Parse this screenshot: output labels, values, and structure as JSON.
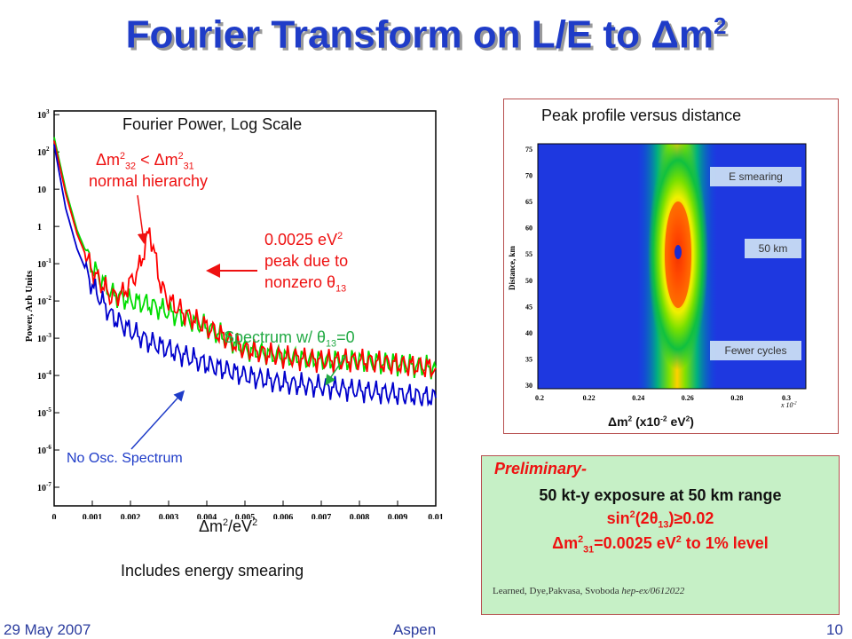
{
  "slide_title": "Fourier Transform on L/E to Δm",
  "slide_title_sup": "2",
  "left_chart": {
    "title": "Fourier Power, Log Scale",
    "ylabel": "Power, Arb Units",
    "xlabel": "Δm",
    "xlabel_sup": "2",
    "xlabel_rest": "/eV",
    "xlabel_sup2": "2",
    "caption": "Includes energy smearing",
    "yticks": [
      {
        "base": "10",
        "exp": "3"
      },
      {
        "base": "10",
        "exp": "2"
      },
      {
        "base": "10",
        "exp": ""
      },
      {
        "base": "1",
        "exp": ""
      },
      {
        "base": "10",
        "exp": "-1"
      },
      {
        "base": "10",
        "exp": "-2"
      },
      {
        "base": "10",
        "exp": "-3"
      },
      {
        "base": "10",
        "exp": "-4"
      },
      {
        "base": "10",
        "exp": "-5"
      },
      {
        "base": "10",
        "exp": "-6"
      },
      {
        "base": "10",
        "exp": "-7"
      }
    ],
    "xticks": [
      "0",
      "0.001",
      "0.002",
      "0.003",
      "0.004",
      "0.005",
      "0.006",
      "0.007",
      "0.008",
      "0.009",
      "0.01"
    ],
    "ann_hierarchy": {
      "l1a": "Δm",
      "l1b": "2",
      "l1c": "32",
      "l1d": " < Δm",
      "l1e": "2",
      "l1f": "31",
      "l2": "normal hierarchy"
    },
    "ann_peak": {
      "l1": "0.0025 eV",
      "l1sup": "2",
      "l2": "peak due to",
      "l3": "nonzero θ",
      "l3sub": "13"
    },
    "ann_theta": {
      "a": "Spectrum w/ θ",
      "sub": "13",
      "b": "=0"
    },
    "ann_noosc": "No Osc. Spectrum"
  },
  "chart_data": [
    {
      "type": "line",
      "title": "Fourier Power, Log Scale",
      "xlabel": "Δm2/eV2",
      "ylabel": "Power, Arb Units",
      "log_y": true,
      "xlim": [
        0,
        0.01
      ],
      "ylim_exp": [
        -7.5,
        3.1
      ],
      "series": [
        {
          "color": "#ff0000",
          "x": [
            0.0,
            0.0003,
            0.0006,
            0.001,
            0.0015,
            0.0018,
            0.0022,
            0.0024,
            0.0025,
            0.0026,
            0.0028,
            0.003,
            0.0035,
            0.004,
            0.005,
            0.006,
            0.007,
            0.008,
            0.009,
            0.01
          ],
          "y_log10": [
            2.3,
            0.9,
            -0.2,
            -1.2,
            -1.9,
            -1.8,
            -1.2,
            -0.5,
            -0.1,
            -0.6,
            -1.6,
            -2.0,
            -2.4,
            -2.7,
            -3.3,
            -3.5,
            -3.6,
            -3.6,
            -3.7,
            -3.8
          ]
        },
        {
          "color": "#00dd00",
          "x": [
            0.0,
            0.0003,
            0.0006,
            0.001,
            0.0015,
            0.002,
            0.0025,
            0.003,
            0.0035,
            0.004,
            0.005,
            0.006,
            0.007,
            0.008,
            0.009,
            0.01
          ],
          "y_log10": [
            2.4,
            1.0,
            -0.1,
            -1.1,
            -1.8,
            -2.0,
            -2.1,
            -2.3,
            -2.5,
            -2.7,
            -3.3,
            -3.5,
            -3.6,
            -3.6,
            -3.7,
            -3.8
          ]
        },
        {
          "color": "#0000cc",
          "x": [
            0.0,
            0.0003,
            0.0006,
            0.001,
            0.0015,
            0.002,
            0.0025,
            0.003,
            0.0035,
            0.004,
            0.005,
            0.006,
            0.007,
            0.008,
            0.009,
            0.01
          ],
          "y_log10": [
            2.2,
            0.5,
            -0.6,
            -1.6,
            -2.4,
            -2.8,
            -3.1,
            -3.3,
            -3.5,
            -3.7,
            -4.0,
            -4.2,
            -4.3,
            -4.4,
            -4.5,
            -4.6
          ]
        }
      ]
    },
    {
      "type": "heatmap",
      "title": "Peak profile versus distance",
      "xlabel": "Δm2 (x10-2 eV2)",
      "ylabel": "Distance, km",
      "xlim": [
        0.2,
        0.32
      ],
      "ylim": [
        30,
        75
      ],
      "peak": {
        "x": 0.252,
        "y": 55
      }
    }
  ],
  "right_panel": {
    "title": "Peak profile versus distance",
    "ylabel": "Distance, km",
    "xlabel_a": "Δm",
    "xlabel_sup1": "2",
    "xlabel_b": " (x10",
    "xlabel_sup2": "-2",
    "xlabel_c": " eV",
    "xlabel_sup3": "2",
    "xlabel_d": ")",
    "x_mult": "x 10",
    "x_mult_sup": "-2",
    "yticks": [
      "75",
      "70",
      "65",
      "60",
      "55",
      "50",
      "45",
      "40",
      "35",
      "30"
    ],
    "xticks": [
      "0.2",
      "0.22",
      "0.24",
      "0.26",
      "0.28",
      "0.3"
    ],
    "label_smearing": "E smearing",
    "label_50km": "50 km",
    "label_fewer": "Fewer cycles"
  },
  "note": {
    "line1": "Preliminary-",
    "line2": "50 kt-y exposure at 50 km range",
    "line3a": "sin",
    "line3sup": "2",
    "line3b": "(2θ",
    "line3sub": "13",
    "line3c": ")≥0.02",
    "line4a": "Δm",
    "line4sup": "2",
    "line4sub": "31",
    "line4b": "=0.0025 eV",
    "line4sup2": "2",
    "line4c": " to 1% level",
    "cite_authors": "Learned, Dye,Pakvasa, Svoboda ",
    "cite_ref": "hep-ex/0612022"
  },
  "footer": {
    "date": "29 May 2007",
    "venue": "Aspen",
    "page": "10"
  },
  "colors": {
    "title": "#1f3cc8",
    "red": "#ee1111",
    "green": "#22aa44",
    "blue": "#1f3cc8",
    "note_bg": "#c6f0c6"
  }
}
